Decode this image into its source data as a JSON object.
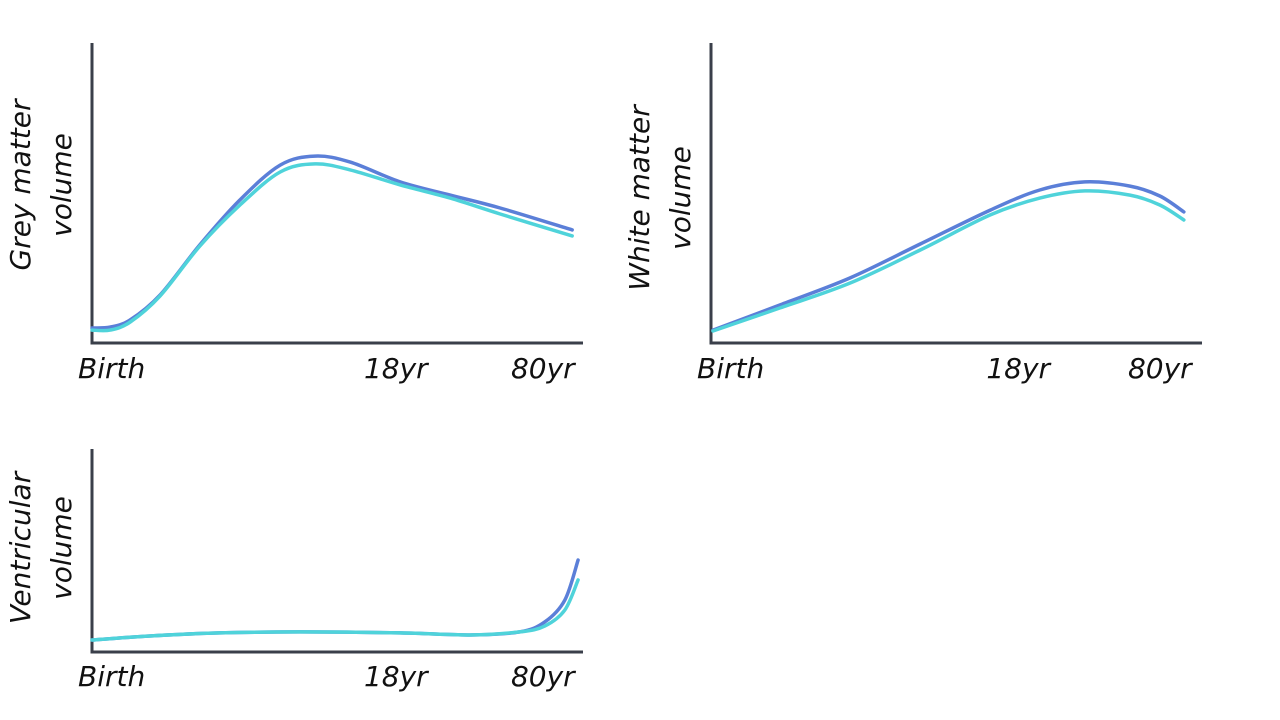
{
  "chart_data": [
    {
      "type": "line",
      "ylabel": [
        "Grey matter",
        "volume"
      ],
      "xlim": [
        0,
        100
      ],
      "ylim": [
        0,
        100
      ],
      "xticks": [
        {
          "value": 0,
          "label": "Birth"
        },
        {
          "value": 62,
          "label": "18yr"
        },
        {
          "value": 92,
          "label": "80yr"
        }
      ],
      "x": [
        0,
        3.7,
        7.8,
        13.9,
        22,
        30.2,
        38.4,
        45.5,
        52.7,
        62.9,
        73.1,
        83.3,
        98
      ],
      "series": [
        {
          "color": "#5b7fd8",
          "values": [
            5,
            5.3,
            7.7,
            16,
            32.7,
            47.7,
            59.3,
            62.3,
            60.3,
            53.7,
            49.3,
            45,
            37.7
          ]
        },
        {
          "color": "#4fd3da",
          "values": [
            4.3,
            4.3,
            7,
            15.7,
            32.3,
            46,
            57,
            59.7,
            57.7,
            52.7,
            48.3,
            43,
            35.7
          ]
        }
      ]
    },
    {
      "type": "line",
      "ylabel": [
        "White matter",
        "volume"
      ],
      "xlim": [
        0,
        100
      ],
      "ylim": [
        0,
        100
      ],
      "xticks": [
        {
          "value": 0,
          "label": "Birth"
        },
        {
          "value": 62.7,
          "label": "18yr"
        },
        {
          "value": 91.6,
          "label": "80yr"
        }
      ],
      "x": [
        0.4,
        14.1,
        28.4,
        42.7,
        57,
        67.1,
        76.3,
        85.5,
        91.6,
        96.5
      ],
      "series": [
        {
          "color": "#5b7fd8",
          "values": [
            4.3,
            12.7,
            21.7,
            33,
            44.3,
            51,
            53.7,
            52.3,
            49,
            43.7
          ]
        },
        {
          "color": "#4fd3da",
          "values": [
            4,
            11.7,
            20,
            31,
            42.7,
            48.3,
            50.7,
            49.3,
            46,
            41
          ]
        }
      ]
    },
    {
      "type": "line",
      "ylabel": [
        "Ventricular",
        "volume"
      ],
      "xlim": [
        0,
        100
      ],
      "ylim": [
        0,
        100
      ],
      "xticks": [
        {
          "value": 0,
          "label": "Birth"
        },
        {
          "value": 62,
          "label": "18yr"
        },
        {
          "value": 92,
          "label": "80yr"
        }
      ],
      "x": [
        0,
        11.8,
        26.1,
        42.4,
        62.9,
        77.1,
        87.3,
        92.4,
        96.5,
        99.2
      ],
      "series": [
        {
          "color": "#5b7fd8",
          "values": [
            5.9,
            7.9,
            9.4,
            9.9,
            9.4,
            8.4,
            9.9,
            14.8,
            25.6,
            45.3
          ]
        },
        {
          "color": "#4fd3da",
          "values": [
            5.9,
            7.9,
            9.4,
            9.9,
            9.4,
            8.4,
            9.9,
            12.8,
            20.7,
            35.5
          ]
        }
      ]
    }
  ]
}
